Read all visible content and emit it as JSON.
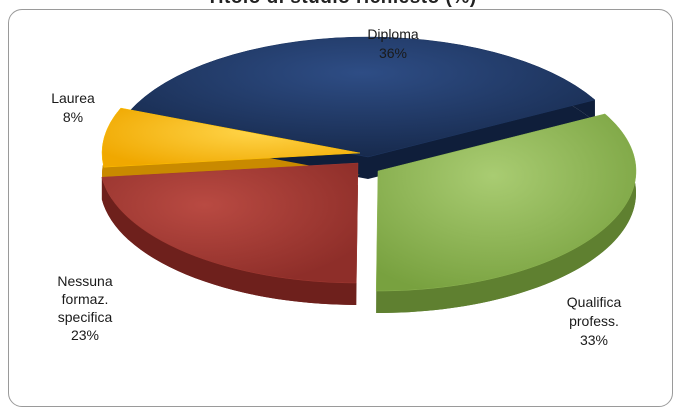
{
  "chart_data": {
    "type": "pie",
    "title": "Titolo di studio richiesto (%)",
    "slices": [
      {
        "label": "Diploma",
        "value": 36,
        "value_label": "36%",
        "color": "#1f3864"
      },
      {
        "label": "Qualifica profess.",
        "value": 33,
        "value_label": "33%",
        "color": "#8db552"
      },
      {
        "label": "Nessuna formaz. specifica",
        "value": 23,
        "value_label": "23%",
        "color": "#a33a33"
      },
      {
        "label": "Laurea",
        "value": 8,
        "value_label": "8%",
        "color": "#ffc000"
      }
    ],
    "legend": "none",
    "style": "3d-exploded"
  }
}
